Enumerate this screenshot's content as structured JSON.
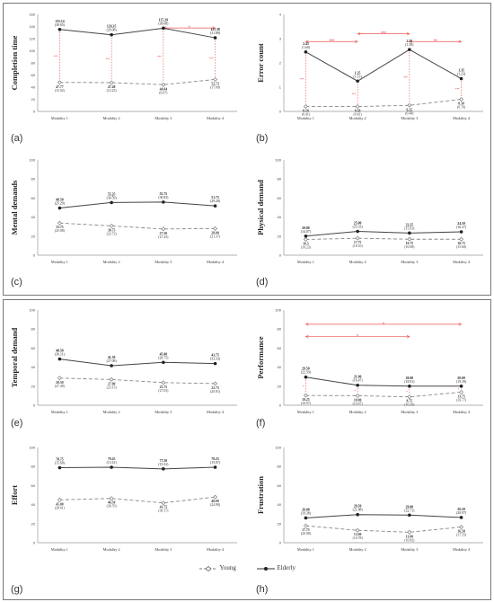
{
  "legend": {
    "young": "Young",
    "elderly": "Elderly"
  },
  "chart_data": [
    {
      "type": "line",
      "panel": "(a)",
      "ylabel": "Completion time",
      "ylim": [
        0,
        160
      ],
      "yticks": [
        0,
        20,
        40,
        60,
        80,
        100,
        120,
        140,
        160
      ],
      "categories": [
        "Modality 1",
        "Modality 2",
        "Modality 3",
        "Modality 4"
      ],
      "series": [
        {
          "name": "Elderly",
          "values": [
            135.14,
            126.35,
            137.29,
            121.38
          ],
          "labels": [
            "135.14",
            "126.35",
            "137.29",
            "121.38"
          ],
          "sds": [
            "(38.05)",
            "(29.08)",
            "(38.08)",
            "(31.88)"
          ]
        },
        {
          "name": "Young",
          "values": [
            47.77,
            47.48,
            44.04,
            52.73
          ],
          "labels": [
            "47.77",
            "47.48",
            "44.04",
            "52.73"
          ],
          "sds": [
            "(15.02)",
            "(12.25)",
            "(6.07)",
            "(17.09)"
          ]
        }
      ],
      "significance": [
        {
          "from": 3,
          "to": 4,
          "level": 0.86,
          "label": "*"
        }
      ],
      "vmarks": [
        0,
        1,
        2,
        3
      ],
      "vmark_label": "***"
    },
    {
      "type": "line",
      "panel": "(b)",
      "ylabel": "Error count",
      "ylim": [
        0,
        4
      ],
      "yticks": [
        0,
        1,
        2,
        3,
        4
      ],
      "categories": [
        "Modality 1",
        "Modality 2",
        "Modality 3",
        "Modality 4"
      ],
      "series": [
        {
          "name": "Elderly",
          "values": [
            2.45,
            1.25,
            2.55,
            1.35
          ],
          "labels": [
            "2.45",
            "1.25",
            "2.55",
            "1.35"
          ],
          "sds": [
            "(1.60)",
            "(1.13)",
            "(1.50)",
            "(1.23)"
          ]
        },
        {
          "name": "Young",
          "values": [
            0.2,
            0.2,
            0.25,
            0.5
          ],
          "labels": [
            "0.20",
            "0.20",
            "0.25",
            "0.50"
          ],
          "sds": [
            "(0.41)",
            "(0.41)",
            "(0.44)",
            "(0.76)"
          ]
        }
      ],
      "significance": [
        {
          "from": 1,
          "to": 2,
          "level": 0.72,
          "label": "***"
        },
        {
          "from": 2,
          "to": 3,
          "level": 0.8,
          "label": "***"
        },
        {
          "from": 3,
          "to": 4,
          "level": 0.72,
          "label": "**"
        }
      ],
      "vmarks": [
        0,
        1,
        2,
        3
      ],
      "vmark_label": "***"
    },
    {
      "type": "line",
      "panel": "(c)",
      "ylabel": "Mental demands",
      "ylim": [
        0,
        100
      ],
      "yticks": [
        0,
        20,
        40,
        60,
        80,
        100
      ],
      "categories": [
        "Modality 1",
        "Modality 2",
        "Modality 3",
        "Modality 4"
      ],
      "series": [
        {
          "name": "Elderly",
          "values": [
            49.5,
            55.25,
            55.75,
            51.75
          ],
          "labels": [
            "49.50",
            "55.25",
            "55.75",
            "51.75"
          ],
          "sds": [
            "(25.29)",
            "(30.59)",
            "(30.83)",
            "(29.28)"
          ]
        },
        {
          "name": "Young",
          "values": [
            33.75,
            30.75,
            27.5,
            28.0
          ],
          "labels": [
            "33.75",
            "30.75",
            "27.50",
            "28.00"
          ],
          "sds": [
            "(25.98)",
            "(23.73)",
            "(27.43)",
            "(21.37)"
          ]
        }
      ],
      "significance": [],
      "vmarks": [],
      "vmark_label": ""
    },
    {
      "type": "line",
      "panel": "(d)",
      "ylabel": "Physical demand",
      "ylim": [
        0,
        100
      ],
      "yticks": [
        0,
        20,
        40,
        60,
        80,
        100
      ],
      "categories": [
        "Modality 1",
        "Modality 2",
        "Modality 3",
        "Modality 4"
      ],
      "series": [
        {
          "name": "Elderly",
          "values": [
            20.0,
            25.0,
            23.25,
            24.5
          ],
          "labels": [
            "20.00",
            "25.00",
            "23.25",
            "24.50"
          ],
          "sds": [
            "(14.07)",
            "(25.33)",
            "(15.91)",
            "(16.37)"
          ]
        },
        {
          "name": "Young",
          "values": [
            16.5,
            17.75,
            16.75,
            16.75
          ],
          "labels": [
            "16.5",
            "17.75",
            "16.75",
            "16.75"
          ],
          "sds": [
            "(10.23)",
            "(18.10)",
            "(10.08)",
            "(15.68)"
          ]
        }
      ],
      "significance": [],
      "vmarks": [],
      "vmark_label": ""
    },
    {
      "type": "line",
      "panel": "(e)",
      "ylabel": "Temporal demand",
      "ylim": [
        0,
        100
      ],
      "yticks": [
        0,
        20,
        40,
        60,
        80,
        100
      ],
      "categories": [
        "Modality 1",
        "Modality 2",
        "Modality 3",
        "Modality 4"
      ],
      "series": [
        {
          "name": "Elderly",
          "values": [
            48.5,
            41.5,
            45.0,
            43.75
          ],
          "labels": [
            "48.50",
            "41.50",
            "45.00",
            "43.75"
          ],
          "sds": [
            "(30.11)",
            "(27.09)",
            "(28.75)",
            "(33.33)"
          ]
        },
        {
          "name": "Young",
          "values": [
            28.5,
            27.0,
            23.75,
            22.75
          ],
          "labels": [
            "28.50",
            "27.00",
            "23.75",
            "22.75"
          ],
          "sds": [
            "(27.49)",
            "(23.15)",
            "(27.03)",
            "(20.81)"
          ]
        }
      ],
      "significance": [],
      "vmarks": [],
      "vmark_label": ""
    },
    {
      "type": "line",
      "panel": "(f)",
      "ylabel": "Performance",
      "ylim": [
        0,
        100
      ],
      "yticks": [
        0,
        20,
        40,
        60,
        80,
        100
      ],
      "categories": [
        "Modality 1",
        "Modality 2",
        "Modality 3",
        "Modality 4"
      ],
      "series": [
        {
          "name": "Elderly",
          "values": [
            29.5,
            21.0,
            20.0,
            20.0
          ],
          "labels": [
            "29.50",
            "21.00",
            "20.00",
            "20.00"
          ],
          "sds": [
            "(22.59)",
            "(16.47)",
            "(18.91)",
            "(19.39)"
          ]
        },
        {
          "name": "Young",
          "values": [
            10.25,
            10.0,
            8.75,
            13.75
          ],
          "labels": [
            "10.25",
            "10.00",
            "8.75",
            "13.75"
          ],
          "sds": [
            "(10.97)",
            "(10.47)",
            "(10.29)",
            "(16.77)"
          ]
        }
      ],
      "significance": [
        {
          "from": 1,
          "to": 4,
          "level": 0.85,
          "label": "*"
        },
        {
          "from": 1,
          "to": 3,
          "level": 0.72,
          "label": "*"
        }
      ],
      "vmarks": [
        0,
        1,
        2,
        3
      ],
      "vmark_label": "*"
    },
    {
      "type": "line",
      "panel": "(g)",
      "ylabel": "Effort",
      "ylim": [
        0,
        100
      ],
      "yticks": [
        0,
        20,
        40,
        60,
        80,
        100
      ],
      "categories": [
        "Modality 1",
        "Modality 2",
        "Modality 3",
        "Modality 4"
      ],
      "series": [
        {
          "name": "Elderly",
          "values": [
            78.75,
            79.25,
            77.5,
            79.25
          ],
          "labels": [
            "78.75",
            "79.25",
            "77.50",
            "79.25"
          ],
          "sds": [
            "(15.68)",
            "(15.41)",
            "(15.52)",
            "(15.87)"
          ]
        },
        {
          "name": "Young",
          "values": [
            45.0,
            46.5,
            41.75,
            48.0
          ],
          "labels": [
            "45.00",
            "46.50",
            "41.75",
            "48.00"
          ],
          "sds": [
            "(28.61)",
            "(30.70)",
            "(30.17)",
            "(24.98)"
          ]
        }
      ],
      "significance": [],
      "vmarks": [],
      "vmark_label": ""
    },
    {
      "type": "line",
      "panel": "(h)",
      "ylabel": "Frustration",
      "ylim": [
        0,
        100
      ],
      "yticks": [
        0,
        20,
        40,
        60,
        80,
        100
      ],
      "categories": [
        "Modality 1",
        "Modality 2",
        "Modality 3",
        "Modality 4"
      ],
      "series": [
        {
          "name": "Elderly",
          "values": [
            26.0,
            29.5,
            29.0,
            26.5
          ],
          "labels": [
            "26.00",
            "29.50",
            "29.00",
            "26.50"
          ],
          "sds": [
            "(19.38)",
            "(21.88)",
            "(22.71)",
            "(20.97)"
          ]
        },
        {
          "name": "Young",
          "values": [
            17.75,
            13.0,
            11.0,
            16.5
          ],
          "labels": [
            "17.75",
            "13.00",
            "11.00",
            "16.50"
          ],
          "sds": [
            "(20.08)",
            "(10.78)",
            "(10.82)",
            "(17.55)"
          ]
        }
      ],
      "significance": [],
      "vmarks": [],
      "vmark_label": ""
    }
  ]
}
